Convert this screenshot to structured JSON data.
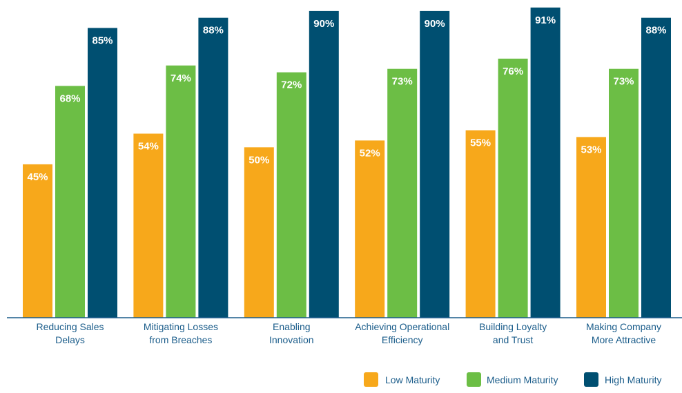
{
  "chart_data": {
    "type": "bar",
    "title": "",
    "xlabel": "",
    "ylabel": "",
    "ylim": [
      0,
      100
    ],
    "grid": false,
    "legend_position": "bottom-right",
    "categories": [
      [
        "Reducing Sales",
        "Delays"
      ],
      [
        "Mitigating Losses",
        "from Breaches"
      ],
      [
        "Enabling",
        "Innovation"
      ],
      [
        "Achieving Operational",
        "Efficiency"
      ],
      [
        "Building Loyalty",
        "and Trust"
      ],
      [
        "Making Company",
        "More Attractive"
      ]
    ],
    "series": [
      {
        "name": "Low Maturity",
        "color": "#F7A81B",
        "values": [
          45,
          54,
          50,
          52,
          55,
          53
        ],
        "labels": [
          "45%",
          "54%",
          "50%",
          "52%",
          "55%",
          "53%"
        ]
      },
      {
        "name": "Medium Maturity",
        "color": "#6CBE45",
        "values": [
          68,
          74,
          72,
          73,
          76,
          73
        ],
        "labels": [
          "68%",
          "74%",
          "72%",
          "73%",
          "76%",
          "73%"
        ]
      },
      {
        "name": "High Maturity",
        "color": "#004F71",
        "values": [
          85,
          88,
          90,
          90,
          91,
          88
        ],
        "labels": [
          "85%",
          "88%",
          "90%",
          "90%",
          "91%",
          "88%"
        ]
      }
    ],
    "axis_color": "#1a5c8a",
    "label_color": "#1a5c8a"
  }
}
